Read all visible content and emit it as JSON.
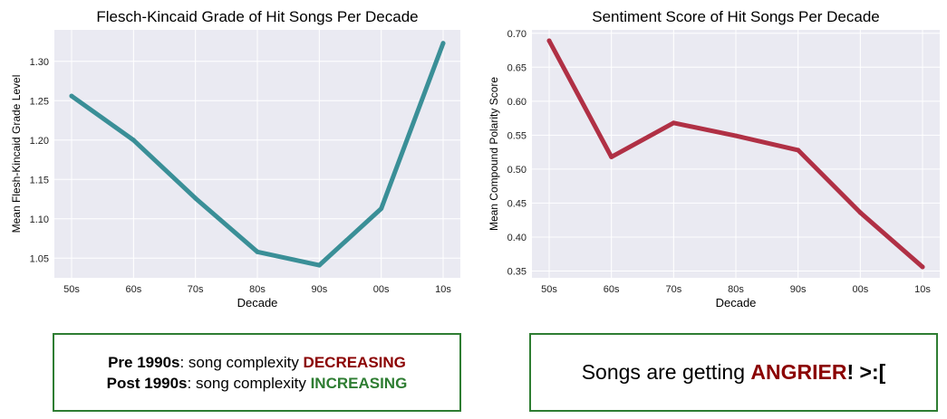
{
  "chart_data": [
    {
      "type": "line",
      "title": "Flesch-Kincaid Grade of Hit Songs Per Decade",
      "xlabel": "Decade",
      "ylabel": "Mean Flesh-Kincaid Grade Level",
      "categories": [
        "50s",
        "60s",
        "70s",
        "80s",
        "90s",
        "00s",
        "10s"
      ],
      "values": [
        1.256,
        1.2,
        1.126,
        1.058,
        1.041,
        1.113,
        1.323
      ],
      "ylim": [
        1.025,
        1.34
      ],
      "yticks": [
        "1.05",
        "1.10",
        "1.15",
        "1.20",
        "1.25",
        "1.30"
      ],
      "color": "#3a8f97",
      "grid": true
    },
    {
      "type": "line",
      "title": "Sentiment Score of Hit Songs Per Decade",
      "xlabel": "Decade",
      "ylabel": "Mean Compound Polarity Score",
      "categories": [
        "50s",
        "60s",
        "70s",
        "80s",
        "90s",
        "00s",
        "10s"
      ],
      "values": [
        0.689,
        0.518,
        0.568,
        0.549,
        0.528,
        0.436,
        0.356
      ],
      "ylim": [
        0.34,
        0.705
      ],
      "yticks": [
        "0.35",
        "0.40",
        "0.45",
        "0.50",
        "0.55",
        "0.60",
        "0.65",
        "0.70"
      ],
      "color": "#b03045",
      "grid": true
    }
  ],
  "annotations": {
    "left": {
      "line1_bold": "Pre 1990s",
      "line1_text": ": song complexity ",
      "line1_emph": "DECREASING",
      "line2_bold": "Post 1990s",
      "line2_text": ": song complexity ",
      "line2_emph": "INCREASING"
    },
    "right": {
      "text_before": "Songs are getting ",
      "emph": "ANGRIER",
      "text_after": "! >:["
    }
  }
}
